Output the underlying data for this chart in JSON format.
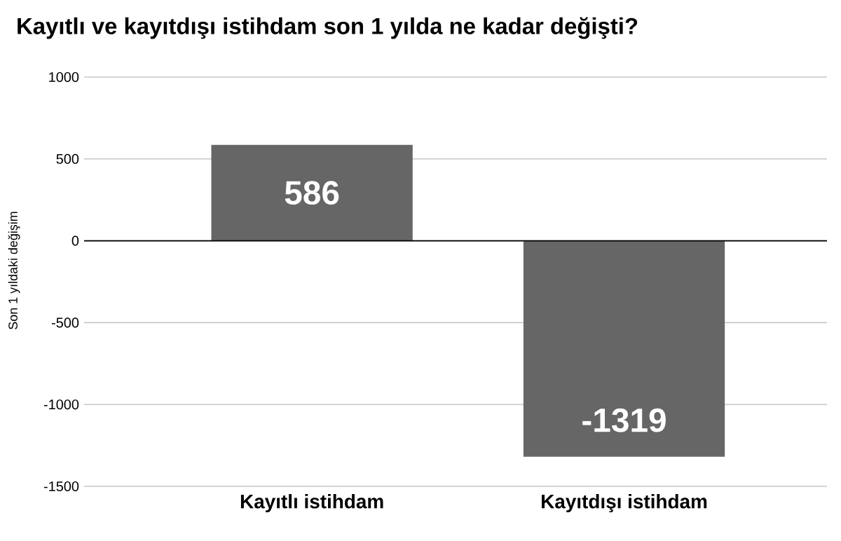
{
  "chart_data": {
    "type": "bar",
    "title": "Kayıtlı ve kayıtdışı istihdam son 1 yılda ne kadar değişti?",
    "ylabel": "Son 1 yıldaki değişim",
    "categories": [
      "Kayıtlı istihdam",
      "Kayıtdışı istihdam"
    ],
    "values": [
      586,
      -1319
    ],
    "color": "#666666",
    "ylim": [
      -1500,
      1000
    ],
    "yticks": [
      -1500,
      -1000,
      -500,
      0,
      500,
      1000
    ],
    "grid": "y",
    "data_labels": true
  }
}
